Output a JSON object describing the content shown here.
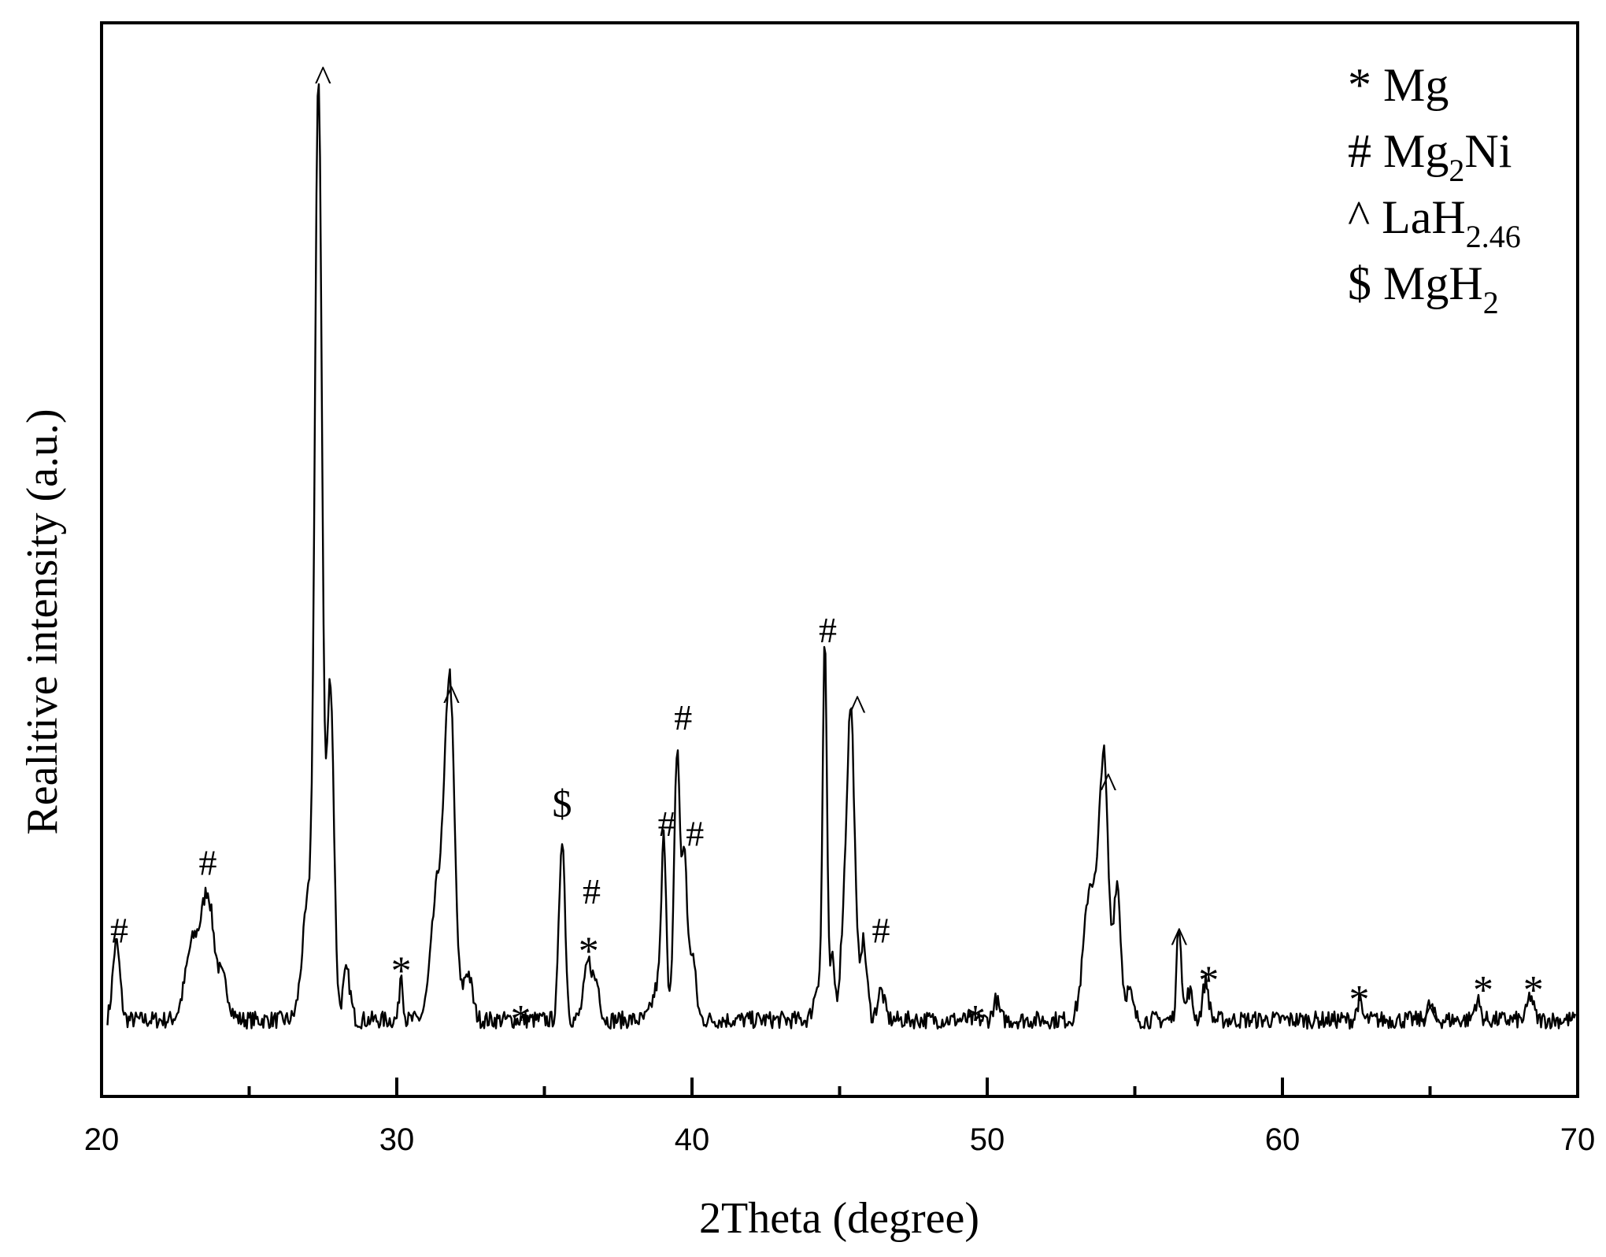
{
  "chart_data": {
    "type": "line",
    "title": "",
    "xlabel": "2Theta (degree)",
    "ylabel": "Realitive intensity (a.u.)",
    "xlim": [
      20,
      70
    ],
    "ylim": [
      0,
      100
    ],
    "x_ticks": [
      20,
      30,
      40,
      50,
      60,
      70
    ],
    "x_minor_ticks": [
      25,
      35,
      45,
      55,
      65
    ],
    "grid": false,
    "legend_position": "top-right",
    "legend": [
      {
        "symbol": "*",
        "text": "Mg",
        "sub": "",
        "tail": ""
      },
      {
        "symbol": "#",
        "text": "Mg",
        "sub": "2",
        "tail": "Ni"
      },
      {
        "symbol": "^",
        "text": "LaH",
        "sub": "2.46",
        "tail": ""
      },
      {
        "symbol": "$",
        "text": "MgH",
        "sub": "2",
        "tail": ""
      }
    ],
    "background": 4,
    "peaks": [
      {
        "x": 20.5,
        "y": 8,
        "w": 0.12
      },
      {
        "x": 23.1,
        "y": 8,
        "w": 0.25
      },
      {
        "x": 23.6,
        "y": 12,
        "w": 0.2
      },
      {
        "x": 24.1,
        "y": 4,
        "w": 0.2
      },
      {
        "x": 27.0,
        "y": 12,
        "w": 0.2
      },
      {
        "x": 27.35,
        "y": 95,
        "w": 0.12
      },
      {
        "x": 27.75,
        "y": 35,
        "w": 0.12
      },
      {
        "x": 28.3,
        "y": 5,
        "w": 0.12
      },
      {
        "x": 30.15,
        "y": 5,
        "w": 0.06
      },
      {
        "x": 31.4,
        "y": 14,
        "w": 0.22
      },
      {
        "x": 31.8,
        "y": 33,
        "w": 0.16
      },
      {
        "x": 32.4,
        "y": 5,
        "w": 0.15
      },
      {
        "x": 35.6,
        "y": 19,
        "w": 0.1
      },
      {
        "x": 36.5,
        "y": 6,
        "w": 0.15
      },
      {
        "x": 36.8,
        "y": 3,
        "w": 0.1
      },
      {
        "x": 38.9,
        "y": 4,
        "w": 0.2
      },
      {
        "x": 39.05,
        "y": 16,
        "w": 0.08
      },
      {
        "x": 39.5,
        "y": 28,
        "w": 0.1
      },
      {
        "x": 39.75,
        "y": 16,
        "w": 0.08
      },
      {
        "x": 40.0,
        "y": 7,
        "w": 0.12
      },
      {
        "x": 44.3,
        "y": 4,
        "w": 0.15
      },
      {
        "x": 44.5,
        "y": 38,
        "w": 0.07
      },
      {
        "x": 44.75,
        "y": 6,
        "w": 0.08
      },
      {
        "x": 45.2,
        "y": 12,
        "w": 0.15
      },
      {
        "x": 45.4,
        "y": 27,
        "w": 0.12
      },
      {
        "x": 45.8,
        "y": 8,
        "w": 0.12
      },
      {
        "x": 46.4,
        "y": 3,
        "w": 0.12
      },
      {
        "x": 50.3,
        "y": 2,
        "w": 0.1
      },
      {
        "x": 53.5,
        "y": 14,
        "w": 0.22
      },
      {
        "x": 53.95,
        "y": 26,
        "w": 0.15
      },
      {
        "x": 54.4,
        "y": 14,
        "w": 0.12
      },
      {
        "x": 54.8,
        "y": 3,
        "w": 0.12
      },
      {
        "x": 56.5,
        "y": 10,
        "w": 0.08
      },
      {
        "x": 56.85,
        "y": 3,
        "w": 0.1
      },
      {
        "x": 57.4,
        "y": 4,
        "w": 0.1
      },
      {
        "x": 62.6,
        "y": 2,
        "w": 0.08
      },
      {
        "x": 65.0,
        "y": 1.5,
        "w": 0.1
      },
      {
        "x": 66.6,
        "y": 2,
        "w": 0.1
      },
      {
        "x": 68.4,
        "y": 2.5,
        "w": 0.1
      }
    ],
    "annotations": [
      {
        "x": 20.6,
        "y": 12,
        "label": "#"
      },
      {
        "x": 23.6,
        "y": 19,
        "label": "#"
      },
      {
        "x": 27.5,
        "y": 102,
        "label": "^"
      },
      {
        "x": 30.15,
        "y": 9,
        "label": "*"
      },
      {
        "x": 31.85,
        "y": 38,
        "label": "^"
      },
      {
        "x": 34.2,
        "y": 4,
        "label": "*"
      },
      {
        "x": 35.6,
        "y": 25,
        "label": "$"
      },
      {
        "x": 36.6,
        "y": 16,
        "label": "#"
      },
      {
        "x": 36.5,
        "y": 11,
        "label": "*"
      },
      {
        "x": 39.15,
        "y": 23,
        "label": "#"
      },
      {
        "x": 39.7,
        "y": 34,
        "label": "#"
      },
      {
        "x": 40.1,
        "y": 22,
        "label": "#"
      },
      {
        "x": 44.6,
        "y": 43,
        "label": "#"
      },
      {
        "x": 45.6,
        "y": 37,
        "label": "^"
      },
      {
        "x": 46.4,
        "y": 12,
        "label": "#"
      },
      {
        "x": 49.6,
        "y": 4,
        "label": "*"
      },
      {
        "x": 54.1,
        "y": 29,
        "label": "^"
      },
      {
        "x": 56.5,
        "y": 13,
        "label": "^"
      },
      {
        "x": 57.5,
        "y": 8,
        "label": "*"
      },
      {
        "x": 62.6,
        "y": 6,
        "label": "*"
      },
      {
        "x": 65.0,
        "y": 5,
        "label": "^"
      },
      {
        "x": 66.8,
        "y": 7,
        "label": "*"
      },
      {
        "x": 68.5,
        "y": 7,
        "label": "*"
      }
    ]
  }
}
